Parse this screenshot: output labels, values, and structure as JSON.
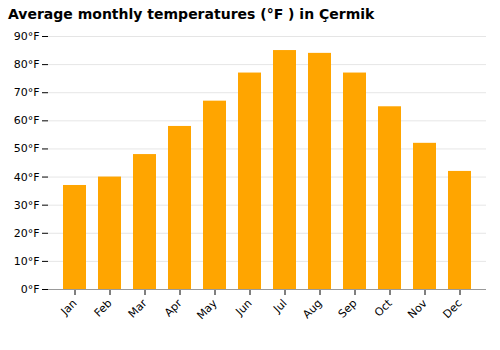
{
  "chart_data": {
    "type": "bar",
    "title": "Average monthly temperatures (°F ) in Çermik",
    "categories": [
      "Jan",
      "Feb",
      "Mar",
      "Apr",
      "May",
      "Jun",
      "Jul",
      "Aug",
      "Sep",
      "Oct",
      "Nov",
      "Dec"
    ],
    "values": [
      37,
      40,
      48,
      58,
      67,
      77,
      85,
      84,
      77,
      65,
      52,
      42
    ],
    "color": "#FFA500",
    "ylim": [
      0,
      90
    ],
    "yticks": [
      {
        "value": 0,
        "label": "0°F"
      },
      {
        "value": 10,
        "label": "10°F"
      },
      {
        "value": 20,
        "label": "20°F"
      },
      {
        "value": 30,
        "label": "30°F"
      },
      {
        "value": 40,
        "label": "40°F"
      },
      {
        "value": 50,
        "label": "50°F"
      },
      {
        "value": 60,
        "label": "60°F"
      },
      {
        "value": 70,
        "label": "70°F"
      },
      {
        "value": 80,
        "label": "80°F"
      },
      {
        "value": 90,
        "label": "90°F"
      }
    ],
    "grid": true
  }
}
